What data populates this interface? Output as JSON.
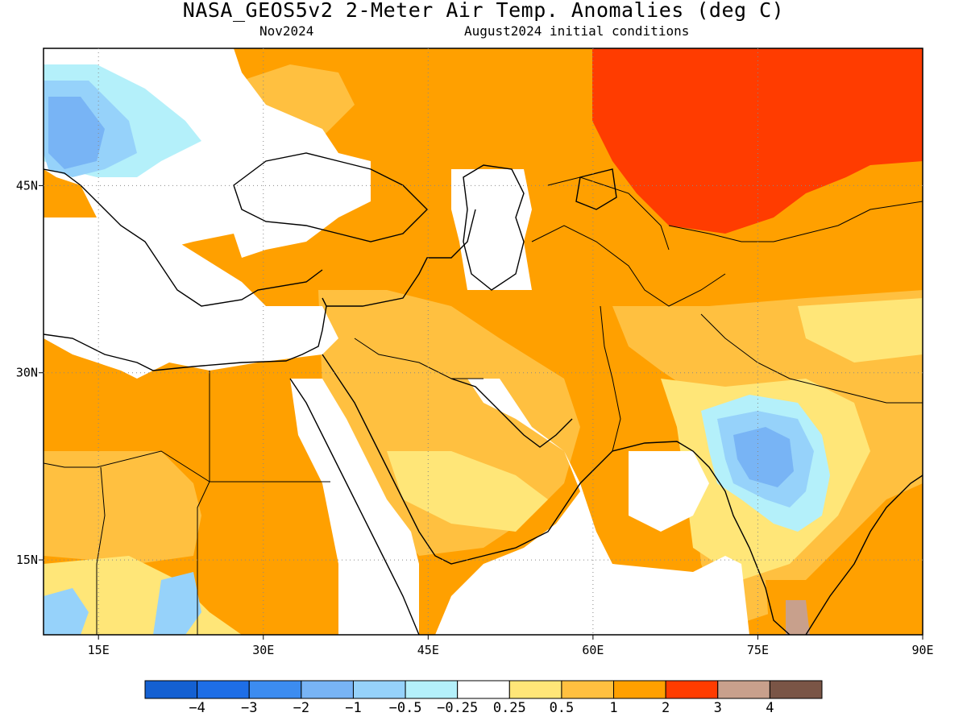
{
  "title": "NASA_GEOS5v2 2-Meter Air Temp. Anomalies (deg C)",
  "subtitle_left": "Nov2024",
  "subtitle_right": "August2024 initial conditions",
  "map_extent": {
    "lon": [
      10,
      90
    ],
    "lat": [
      9,
      56
    ]
  },
  "lon_ticks": [
    {
      "value": 15,
      "label": "15E"
    },
    {
      "value": 30,
      "label": "30E"
    },
    {
      "value": 45,
      "label": "45E"
    },
    {
      "value": 60,
      "label": "60E"
    },
    {
      "value": 75,
      "label": "75E"
    },
    {
      "value": 90,
      "label": "90E"
    }
  ],
  "lat_ticks": [
    {
      "value": 45,
      "label": "45N"
    },
    {
      "value": 30,
      "label": "30N"
    },
    {
      "value": 15,
      "label": "15N"
    }
  ],
  "colorbar": {
    "colors": [
      "#1460d2",
      "#1e6ee6",
      "#3c8cf0",
      "#78b4f5",
      "#96d2fa",
      "#b4f0fa",
      "#ffffff",
      "#ffe678",
      "#ffc040",
      "#ffa000",
      "#ff3c00",
      "#c8a08c",
      "#7a5546"
    ],
    "labels": [
      "−4",
      "−3",
      "−2",
      "−1",
      "−0.5",
      "−0.25",
      "0.25",
      "0.5",
      "1",
      "2",
      "3",
      "4"
    ]
  },
  "regions": [
    {
      "name": "Central Asia / Siberia",
      "category": "3",
      "color": "#ff3c00"
    },
    {
      "name": "Turkey / Black Sea / Balkans",
      "category": "-0.25–0.25",
      "color": "#ffffff"
    },
    {
      "name": "Central Europe",
      "category": "-1",
      "color": "#78b4f5"
    },
    {
      "name": "Central India",
      "category": "-2",
      "color": "#78b4f5"
    },
    {
      "name": "North Africa (Libya / Egypt)",
      "category": "2",
      "color": "#ffa000"
    },
    {
      "name": "Middle East / Iran / Kazakhstan",
      "category": "2",
      "color": "#ffa000"
    },
    {
      "name": "Arabian Peninsula",
      "category": "1",
      "color": "#ffc040"
    },
    {
      "name": "Arabian Sea / Indian Ocean",
      "category": "-0.25–0.25",
      "color": "#ffffff"
    }
  ]
}
